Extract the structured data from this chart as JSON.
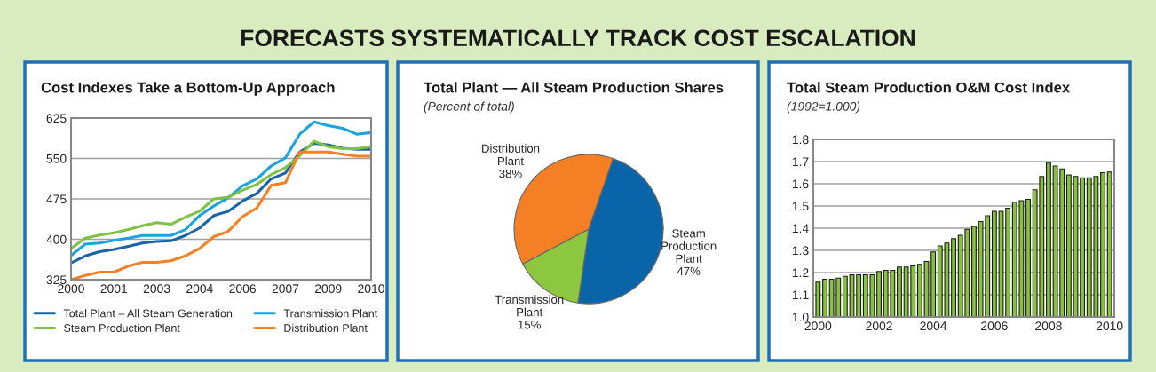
{
  "chart_data": [
    {
      "type": "line",
      "title": "Cost Indexes Take a Bottom-Up Approach",
      "annotations": [
        "FORECASTS SYSTEMATICALLY TRACK COST ESCALATION"
      ],
      "categories": [
        "2000",
        null,
        null,
        "2001",
        null,
        null,
        "2003",
        null,
        null,
        "2004",
        null,
        null,
        "2006",
        null,
        null,
        "2007",
        null,
        null,
        "2009",
        null,
        null,
        "2010"
      ],
      "series": [
        {
          "name": "Total Plant – All Steam Generation",
          "color": "#1a63a8",
          "values": [
            356,
            369,
            377,
            381,
            387,
            393,
            396,
            397,
            407,
            421,
            444,
            452,
            471,
            485,
            512,
            523,
            562,
            578,
            575,
            569,
            567,
            567
          ]
        },
        {
          "name": "Transmission Plant",
          "color": "#1ba3e0",
          "values": [
            370,
            391,
            393,
            398,
            402,
            407,
            407,
            407,
            418,
            444,
            462,
            477,
            499,
            512,
            536,
            551,
            595,
            618,
            611,
            606,
            595,
            598
          ]
        },
        {
          "name": "Steam Production Plant",
          "color": "#7dc242",
          "values": [
            383,
            402,
            408,
            412,
            418,
            425,
            431,
            428,
            441,
            452,
            475,
            478,
            491,
            502,
            520,
            533,
            555,
            582,
            572,
            568,
            568,
            572
          ]
        },
        {
          "name": "Distribution Plant",
          "color": "#f58025",
          "values": [
            325,
            333,
            339,
            339,
            350,
            357,
            357,
            360,
            369,
            383,
            405,
            415,
            442,
            458,
            500,
            505,
            562,
            562,
            562,
            558,
            554,
            554
          ]
        }
      ],
      "ylim": [
        325,
        625
      ],
      "yticks": [
        325,
        400,
        475,
        550,
        625
      ],
      "grid": "y",
      "legend": "bottom",
      "line_style": "solid",
      "marker": "none"
    },
    {
      "type": "pie",
      "title": "Total Plant — All Steam Production Shares",
      "subtitle": "(Percent of total)",
      "categories": [
        "Steam\nProduction\nPlant",
        "Transmission\nPlant",
        "Distribution\nPlant"
      ],
      "values": [
        47,
        15,
        38
      ],
      "value_labels": [
        "47%",
        "15%",
        "38%"
      ],
      "colors": [
        "#0a64a8",
        "#8dc63f",
        "#f47f24"
      ]
    },
    {
      "type": "bar",
      "title": "Total Steam Production O&M Cost Index",
      "subtitle": "(1992=1.000)",
      "categories": [
        "2000",
        null,
        null,
        null,
        null,
        null,
        null,
        null,
        null,
        "2002",
        null,
        null,
        null,
        null,
        null,
        null,
        null,
        "2004",
        null,
        null,
        null,
        null,
        null,
        null,
        null,
        null,
        "2006",
        null,
        null,
        null,
        null,
        null,
        null,
        null,
        "2008",
        null,
        null,
        null,
        null,
        null,
        null,
        null,
        null,
        "2010"
      ],
      "values": [
        1.157,
        1.17,
        1.17,
        1.175,
        1.183,
        1.19,
        1.19,
        1.19,
        1.19,
        1.205,
        1.21,
        1.21,
        1.225,
        1.225,
        1.23,
        1.237,
        1.25,
        1.293,
        1.32,
        1.333,
        1.353,
        1.368,
        1.395,
        1.408,
        1.43,
        1.456,
        1.476,
        1.476,
        1.49,
        1.517,
        1.524,
        1.53,
        1.573,
        1.633,
        1.696,
        1.68,
        1.667,
        1.64,
        1.633,
        1.627,
        1.627,
        1.633,
        1.65,
        1.653
      ],
      "color": "#86c23b",
      "ylim": [
        1.0,
        1.8
      ],
      "yticks": [
        {
          "value": 1.0,
          "label": "1.0"
        },
        1.1,
        1.2,
        1.3,
        1.4,
        1.5,
        1.6,
        1.7,
        1.8
      ],
      "grid": "y"
    }
  ]
}
